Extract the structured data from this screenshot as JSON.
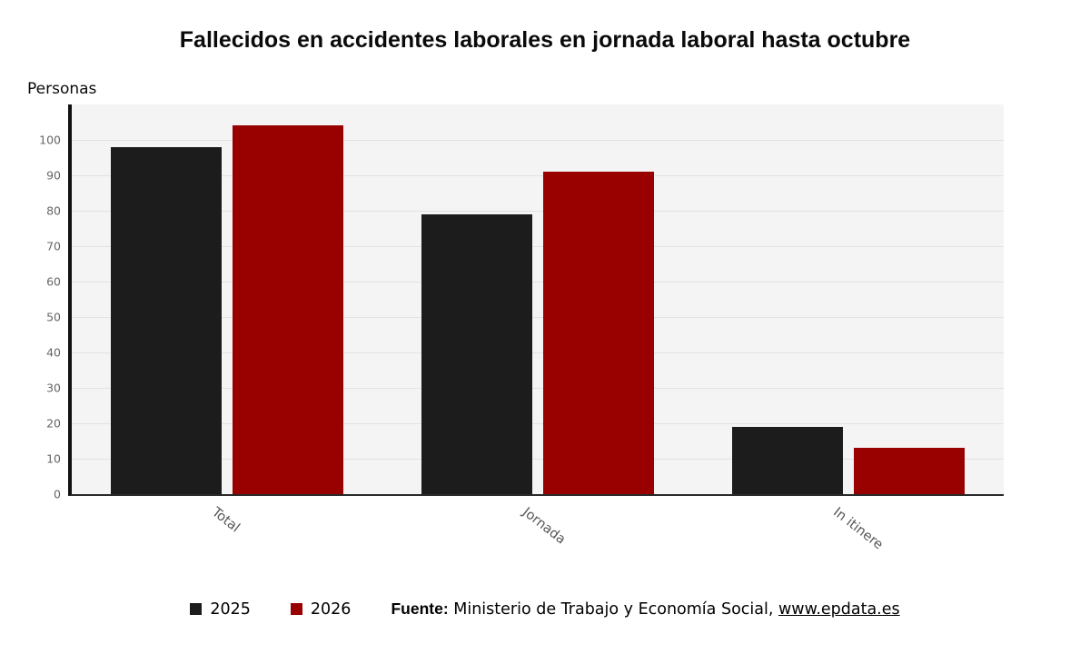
{
  "header": {
    "title": "Fallecidos en accidentes laborales en jornada laboral hasta octubre",
    "y_axis_title": "Personas"
  },
  "chart_data": {
    "type": "bar",
    "title": "Fallecidos en accidentes laborales en jornada laboral hasta octubre",
    "ylabel": "Personas",
    "xlabel": "",
    "categories": [
      "Total",
      "Jornada",
      "In itinere"
    ],
    "series": [
      {
        "name": "2025",
        "color": "#1c1c1c",
        "values": [
          98,
          79,
          19
        ]
      },
      {
        "name": "2026",
        "color": "#990000",
        "values": [
          104,
          91,
          13
        ]
      }
    ],
    "ylim": [
      0,
      110
    ],
    "yticks": [
      0,
      10,
      20,
      30,
      40,
      50,
      60,
      70,
      80,
      90,
      100
    ],
    "grid": true,
    "legend_position": "bottom"
  },
  "footer": {
    "legend": [
      {
        "label": "2025",
        "color": "#1c1c1c"
      },
      {
        "label": "2026",
        "color": "#990000"
      }
    ],
    "source_label": "Fuente:",
    "source_text": "Ministerio de Trabajo y Economía Social,",
    "source_link": "www.epdata.es"
  }
}
